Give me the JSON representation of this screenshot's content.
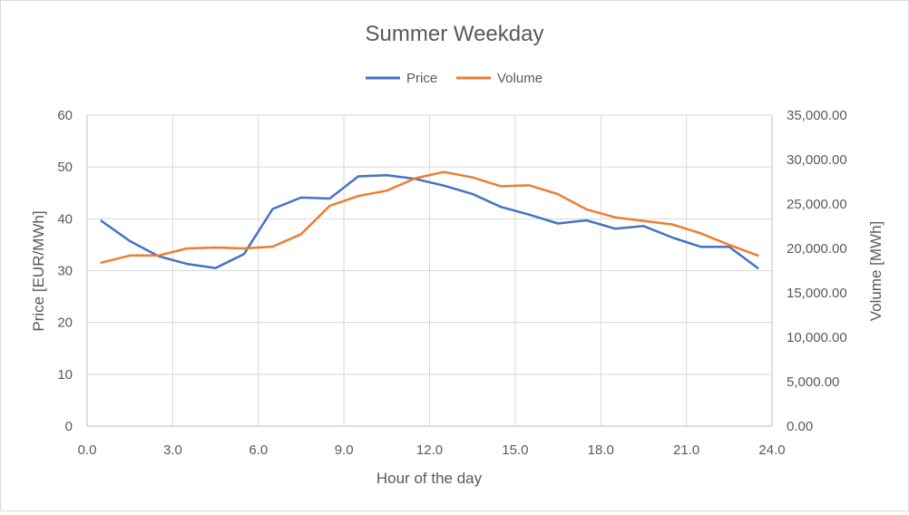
{
  "chart_data": {
    "type": "line",
    "title": "Summer Weekday",
    "xlabel": "Hour of the day",
    "ylabel": "Price [EUR/MWh]",
    "y2label": "Volume [MWh]",
    "xlim": [
      0,
      24
    ],
    "ylim": [
      0,
      60
    ],
    "y2lim": [
      0,
      35000
    ],
    "x_ticks": [
      "0.0",
      "3.0",
      "6.0",
      "9.0",
      "12.0",
      "15.0",
      "18.0",
      "21.0",
      "24.0"
    ],
    "y_ticks": [
      "0",
      "10",
      "20",
      "30",
      "40",
      "50",
      "60"
    ],
    "y2_ticks": [
      "0.00",
      "5,000.00",
      "10,000.00",
      "15,000.00",
      "20,000.00",
      "25,000.00",
      "30,000.00",
      "35,000.00"
    ],
    "grid": true,
    "legend_position": "top",
    "x": [
      0.5,
      1.5,
      2.5,
      3.5,
      4.5,
      5.5,
      6.5,
      7.5,
      8.5,
      9.5,
      10.5,
      11.5,
      12.5,
      13.5,
      14.5,
      15.5,
      16.5,
      17.5,
      18.5,
      19.5,
      20.5,
      21.5,
      22.5,
      23.5
    ],
    "series": [
      {
        "name": "Price",
        "axis": "left",
        "color": "#4472c4",
        "values": [
          39.6,
          35.7,
          32.8,
          31.3,
          30.5,
          33.2,
          41.9,
          44.1,
          43.9,
          48.2,
          48.4,
          47.7,
          46.4,
          44.8,
          42.3,
          40.8,
          39.1,
          39.7,
          38.1,
          38.6,
          36.4,
          34.6,
          34.6,
          30.5
        ]
      },
      {
        "name": "Volume",
        "axis": "right",
        "color": "#ed7d31",
        "values": [
          18400,
          19200,
          19200,
          20000,
          20100,
          20000,
          20200,
          21600,
          24800,
          25900,
          26500,
          27900,
          28600,
          28000,
          27000,
          27100,
          26100,
          24400,
          23500,
          23100,
          22700,
          21700,
          20400,
          19200
        ]
      }
    ]
  }
}
